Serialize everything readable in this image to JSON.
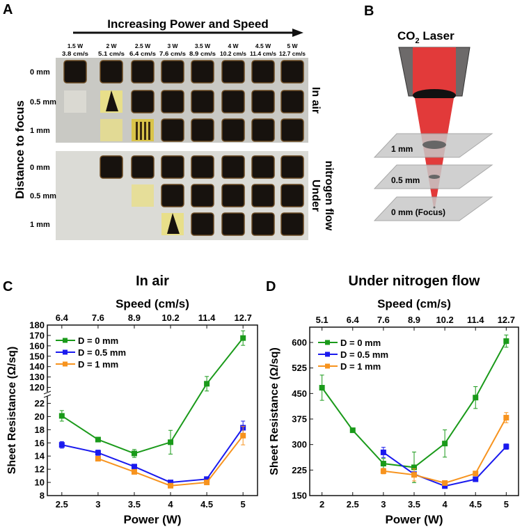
{
  "panel_a": {
    "label": "A",
    "title": "Increasing Power and Speed",
    "y_title": "Distance to focus",
    "columns": [
      {
        "power": "1.5 W",
        "speed": "3.8 cm/s"
      },
      {
        "power": "2 W",
        "speed": "5.1 cm/s"
      },
      {
        "power": "2.5 W",
        "speed": "6.4 cm/s"
      },
      {
        "power": "3 W",
        "speed": "7.6 cm/s"
      },
      {
        "power": "3.5 W",
        "speed": "8.9 cm/s"
      },
      {
        "power": "4 W",
        "speed": "10.2 cm/s"
      },
      {
        "power": "4.5 W",
        "speed": "11.4 cm/s"
      },
      {
        "power": "5 W",
        "speed": "12.7 cm/s"
      }
    ],
    "groups": [
      {
        "name_lines": [
          "In air"
        ],
        "rows": [
          {
            "label": "0 mm",
            "cells": [
              "d",
              "d",
              "d",
              "d",
              "d",
              "d",
              "d",
              "d"
            ]
          },
          {
            "label": "0.5 mm",
            "cells": [
              "f",
              "p",
              "d",
              "d",
              "d",
              "d",
              "d",
              "d"
            ]
          },
          {
            "label": "1 mm",
            "cells": [
              "n",
              "y",
              "s",
              "d",
              "d",
              "d",
              "d",
              "d"
            ]
          }
        ]
      },
      {
        "name_lines": [
          "Under",
          "nitrogen flow"
        ],
        "rows": [
          {
            "label": "0 mm",
            "cells": [
              "n",
              "d",
              "d",
              "d",
              "d",
              "d",
              "d",
              "d"
            ]
          },
          {
            "label": "0.5 mm",
            "cells": [
              "n",
              "n",
              "y",
              "d",
              "d",
              "d",
              "d",
              "d"
            ]
          },
          {
            "label": "1 mm",
            "cells": [
              "n",
              "n",
              "n",
              "p",
              "d",
              "d",
              "d",
              "d"
            ]
          }
        ]
      }
    ]
  },
  "panel_b": {
    "label": "B",
    "title": "CO",
    "title_sub": "2",
    "title_rest": " Laser",
    "planes": [
      "1 mm",
      "0.5 mm",
      "0 mm (Focus)"
    ]
  },
  "chart_data": [
    {
      "panel_label": "C",
      "type": "line",
      "title": "In air",
      "xlabel": "Power (W)",
      "x2label": "Speed (cm/s)",
      "ylabel": "Sheet Resistance (Ω/sq)",
      "x": [
        2.5,
        3,
        3.5,
        4,
        4.5,
        5
      ],
      "x_ticks": [
        "2.5",
        "3",
        "3.5",
        "4",
        "4.5",
        "5"
      ],
      "x2_ticks": [
        "6.4",
        "7.6",
        "8.9",
        "10.2",
        "11.4",
        "12.7"
      ],
      "xlim": [
        2.3,
        5.2
      ],
      "y_break": true,
      "ylim_lower": [
        8,
        23
      ],
      "ylim_upper": [
        115,
        180
      ],
      "y_ticks_lower": [
        "8",
        "10",
        "12",
        "14",
        "16",
        "18",
        "20",
        "22"
      ],
      "y_ticks_upper": [
        "120",
        "130",
        "140",
        "150",
        "160",
        "170",
        "180"
      ],
      "legend_position": "top-left",
      "series": [
        {
          "name": "D = 0 mm",
          "color": "#1a9a1a",
          "x": [
            2.5,
            3,
            3.5,
            4,
            4.5,
            5
          ],
          "values": [
            20.1,
            16.5,
            14.4,
            16.1,
            123.5,
            167.5
          ],
          "errors": [
            0.8,
            0.2,
            0.6,
            1.8,
            7,
            7
          ]
        },
        {
          "name": "D = 0.5 mm",
          "color": "#1a1aee",
          "x": [
            2.5,
            3,
            3.5,
            4,
            4.5,
            5
          ],
          "values": [
            15.7,
            14.5,
            12.4,
            10.0,
            10.5,
            18.3
          ],
          "errors": [
            0.5,
            0.4,
            0.2,
            0.2,
            0.1,
            1.0
          ]
        },
        {
          "name": "D = 1 mm",
          "color": "#f7931e",
          "x": [
            3,
            3.5,
            4,
            4.5,
            5
          ],
          "values": [
            13.6,
            11.6,
            9.5,
            10.0,
            17.1
          ],
          "errors": [
            0.2,
            0.3,
            0.1,
            0.1,
            1.4
          ]
        }
      ]
    },
    {
      "panel_label": "D",
      "type": "line",
      "title": "Under nitrogen flow",
      "xlabel": "Power (W)",
      "x2label": "Speed (cm/s)",
      "ylabel": "Sheet Resistance (Ω/sq)",
      "x": [
        2,
        2.5,
        3,
        3.5,
        4,
        4.5,
        5
      ],
      "x_ticks": [
        "2",
        "2.5",
        "3",
        "3.5",
        "4",
        "4.5",
        "5"
      ],
      "x2_ticks": [
        "5.1",
        "6.4",
        "7.6",
        "8.9",
        "10.2",
        "11.4",
        "12.7"
      ],
      "xlim": [
        1.8,
        5.2
      ],
      "ylim": [
        150,
        645
      ],
      "y_ticks": [
        "150",
        "225",
        "300",
        "375",
        "450",
        "525",
        "600"
      ],
      "legend_position": "top-left",
      "series": [
        {
          "name": "D = 0 mm",
          "color": "#1a9a1a",
          "x": [
            2,
            2.5,
            3,
            3.5,
            4,
            4.5,
            5
          ],
          "values": [
            467,
            342,
            244,
            233,
            303,
            438,
            604
          ],
          "errors": [
            37,
            5,
            15,
            45,
            40,
            32,
            18
          ]
        },
        {
          "name": "D = 0.5 mm",
          "color": "#1a1aee",
          "x": [
            3,
            3.5,
            4,
            4.5,
            5
          ],
          "values": [
            277,
            213,
            178,
            198,
            294
          ],
          "errors": [
            15,
            5,
            5,
            4,
            8
          ]
        },
        {
          "name": "D = 1 mm",
          "color": "#f7931e",
          "x": [
            3,
            3.5,
            4,
            4.5,
            5
          ],
          "values": [
            222,
            211,
            187,
            215,
            379
          ],
          "errors": [
            8,
            18,
            5,
            4,
            15
          ]
        }
      ]
    }
  ]
}
